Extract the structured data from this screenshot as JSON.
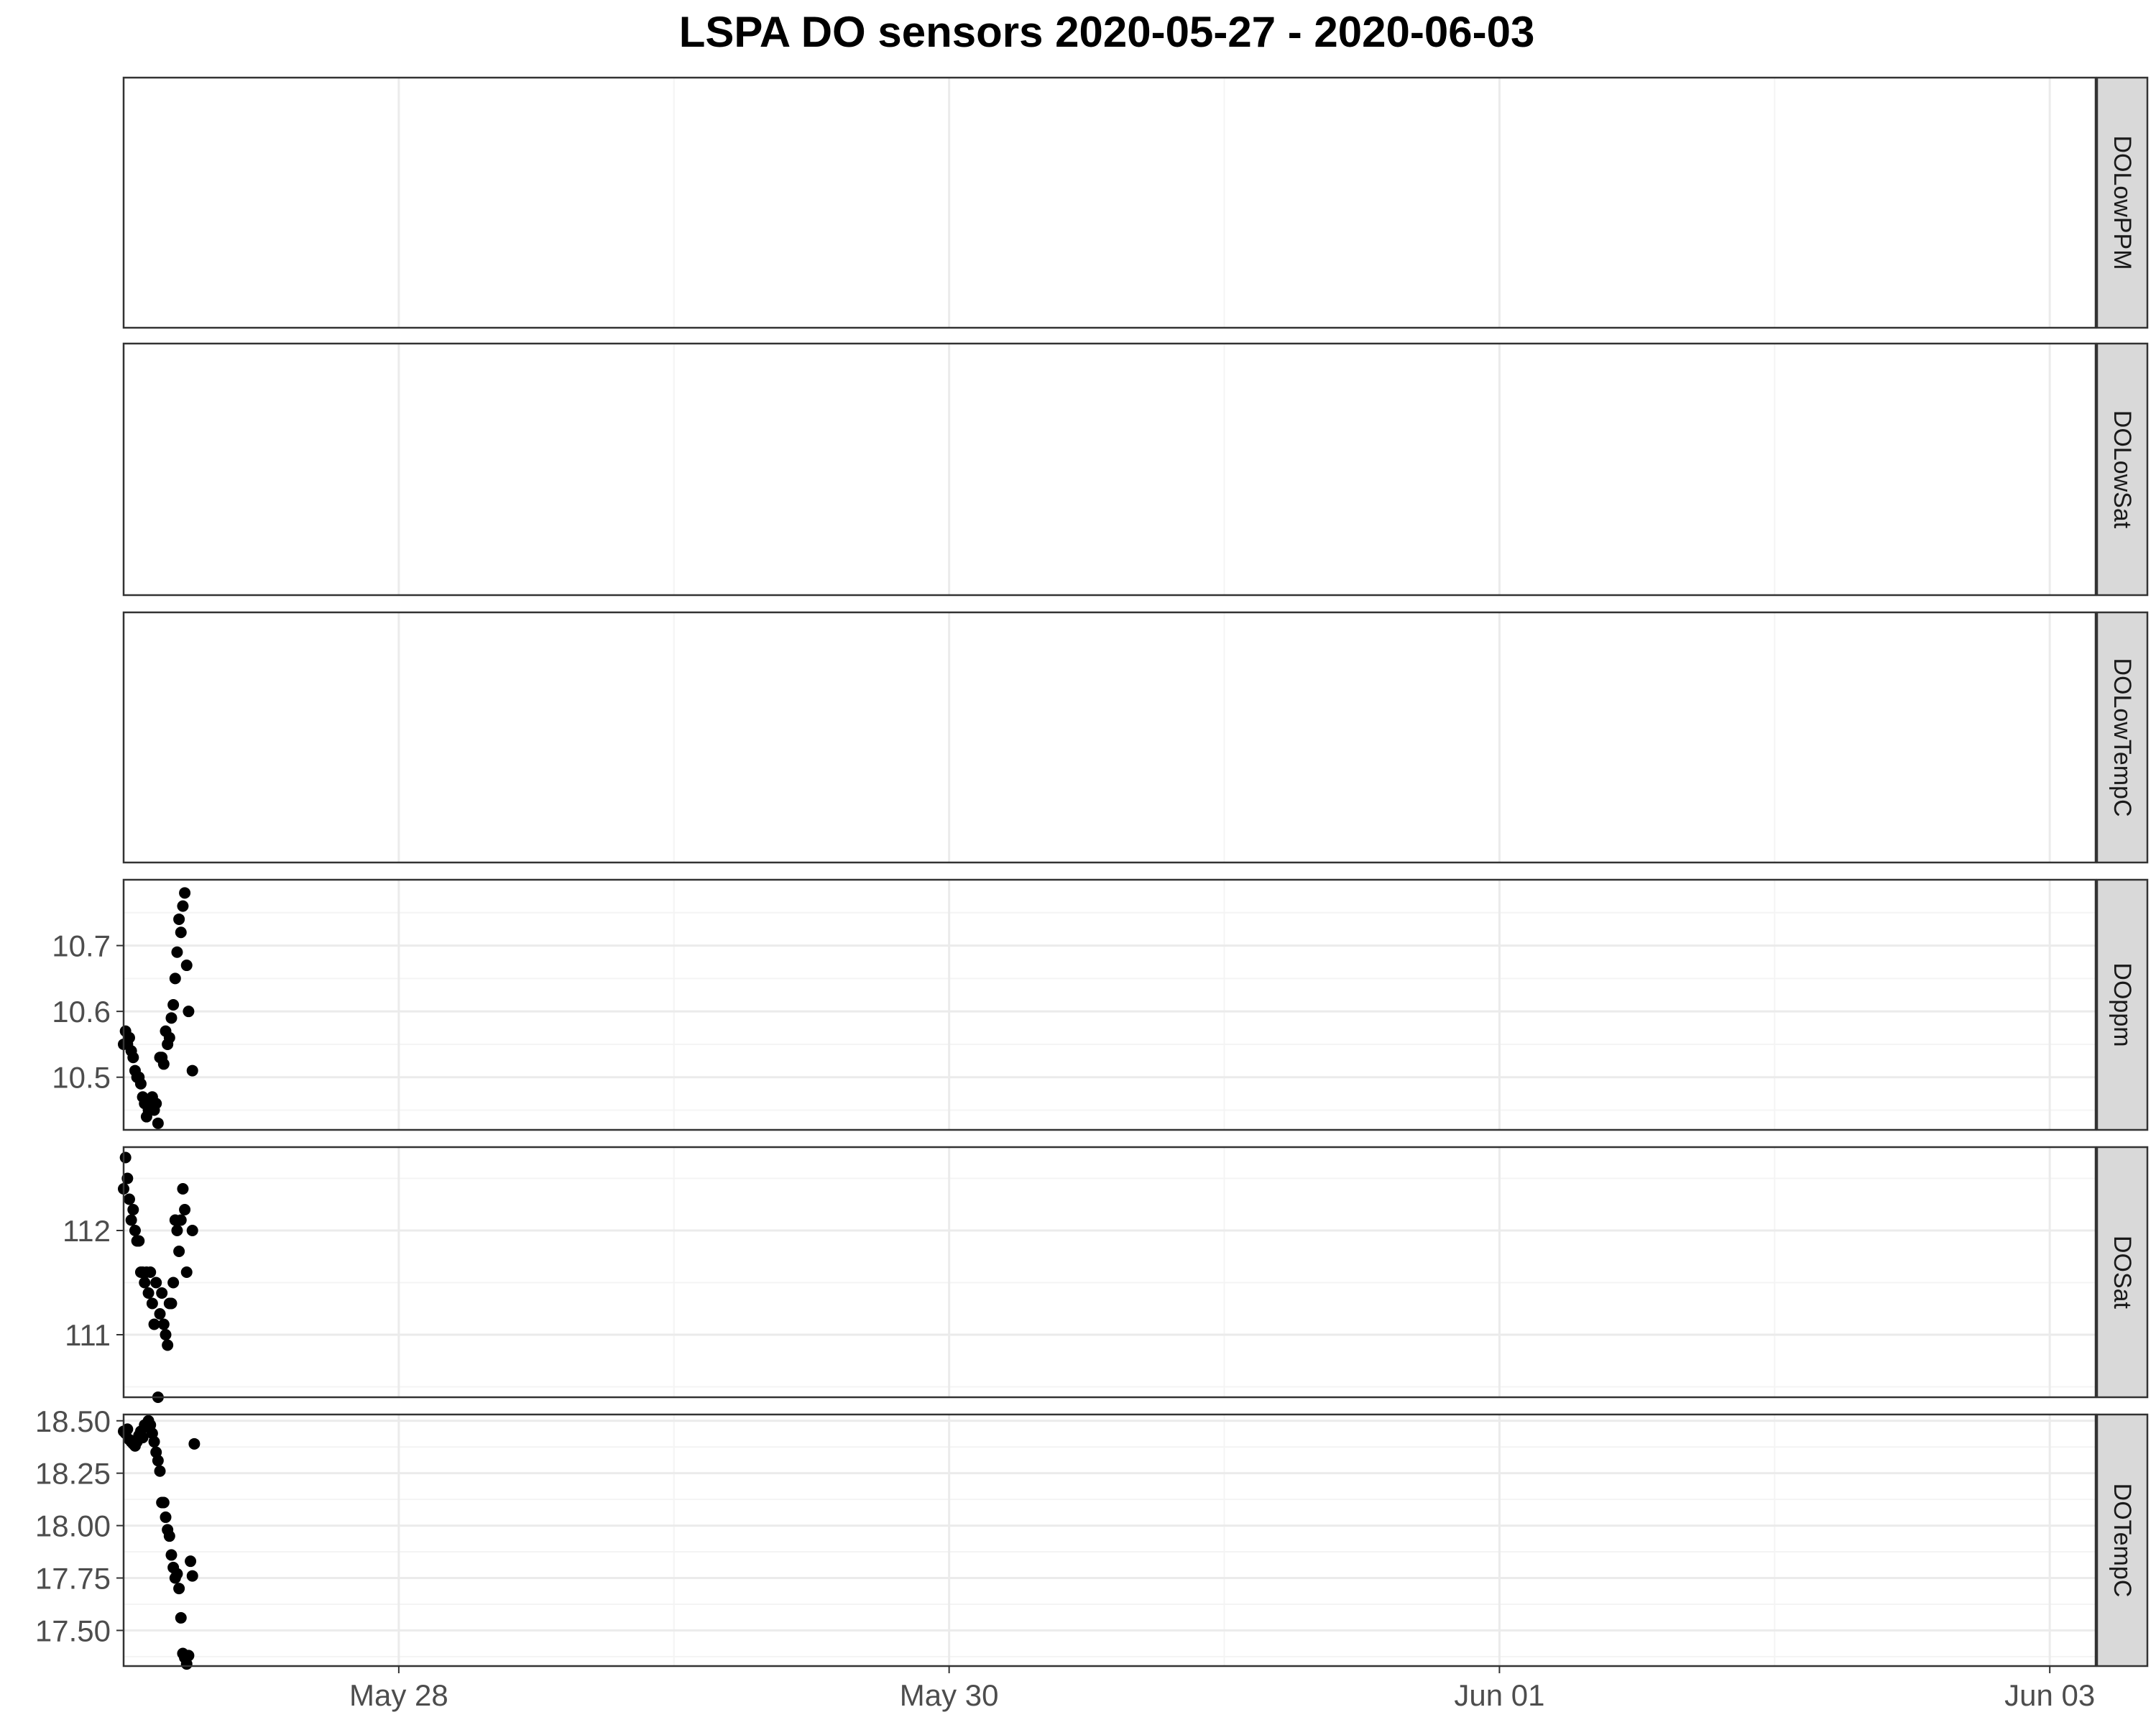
{
  "title": "LSPA DO sensors 2020-05-27 - 2020-06-03",
  "colors": {
    "point": "#000000",
    "panel_border": "#333333",
    "grid_major": "#ebebeb",
    "grid_minor": "#f4f4f4",
    "strip_fill": "#d9d9d9",
    "background": "#ffffff"
  },
  "chart_data": {
    "type": "scatter",
    "title": "LSPA DO sensors 2020-05-27 - 2020-06-03",
    "facet_layout": "stacked rows, shared date x-axis, strip labels on right",
    "grid": true,
    "x_range": [
      "2020-05-27T00:00",
      "2020-06-03T04:00"
    ],
    "x_ticks": [
      {
        "value": "2020-05-28",
        "label": "May 28"
      },
      {
        "value": "2020-05-30",
        "label": "May 30"
      },
      {
        "value": "2020-06-01",
        "label": "Jun 01"
      },
      {
        "value": "2020-06-03",
        "label": "Jun 03"
      }
    ],
    "x_minor_ticks": [
      "2020-05-27",
      "2020-05-29",
      "2020-05-31",
      "2020-06-02"
    ],
    "panels": [
      {
        "name": "DOLowPPM",
        "points": []
      },
      {
        "name": "DOLowSat",
        "points": []
      },
      {
        "name": "DOLowTempC",
        "points": []
      },
      {
        "name": "DOppm",
        "ylim": [
          10.42,
          10.8
        ],
        "y_ticks": [
          10.5,
          10.6,
          10.7
        ],
        "y_tick_labels": [
          "10.5",
          "10.6",
          "10.7"
        ],
        "points": [
          [
            "2020-05-27T00:00",
            10.55
          ],
          [
            "2020-05-27T00:10",
            10.57
          ],
          [
            "2020-05-27T00:20",
            10.55
          ],
          [
            "2020-05-27T00:30",
            10.56
          ],
          [
            "2020-05-27T00:40",
            10.54
          ],
          [
            "2020-05-27T00:50",
            10.53
          ],
          [
            "2020-05-27T01:00",
            10.51
          ],
          [
            "2020-05-27T01:10",
            10.5
          ],
          [
            "2020-05-27T01:20",
            10.5
          ],
          [
            "2020-05-27T01:30",
            10.49
          ],
          [
            "2020-05-27T01:40",
            10.47
          ],
          [
            "2020-05-27T01:50",
            10.46
          ],
          [
            "2020-05-27T02:00",
            10.44
          ],
          [
            "2020-05-27T02:10",
            10.45
          ],
          [
            "2020-05-27T02:20",
            10.46
          ],
          [
            "2020-05-27T02:30",
            10.47
          ],
          [
            "2020-05-27T02:40",
            10.45
          ],
          [
            "2020-05-27T02:50",
            10.46
          ],
          [
            "2020-05-27T03:00",
            10.43
          ],
          [
            "2020-05-27T03:10",
            10.53
          ],
          [
            "2020-05-27T03:20",
            10.53
          ],
          [
            "2020-05-27T03:30",
            10.52
          ],
          [
            "2020-05-27T03:40",
            10.57
          ],
          [
            "2020-05-27T03:50",
            10.55
          ],
          [
            "2020-05-27T04:00",
            10.56
          ],
          [
            "2020-05-27T04:10",
            10.59
          ],
          [
            "2020-05-27T04:20",
            10.61
          ],
          [
            "2020-05-27T04:30",
            10.65
          ],
          [
            "2020-05-27T04:40",
            10.69
          ],
          [
            "2020-05-27T04:50",
            10.74
          ],
          [
            "2020-05-27T05:00",
            10.72
          ],
          [
            "2020-05-27T05:10",
            10.76
          ],
          [
            "2020-05-27T05:20",
            10.78
          ],
          [
            "2020-05-27T05:30",
            10.67
          ],
          [
            "2020-05-27T05:40",
            10.6
          ],
          [
            "2020-05-27T06:00",
            10.51
          ]
        ]
      },
      {
        "name": "DOSat",
        "ylim": [
          110.4,
          112.8
        ],
        "y_ticks": [
          111,
          112
        ],
        "y_tick_labels": [
          "111",
          "112"
        ],
        "points": [
          [
            "2020-05-27T00:00",
            112.4
          ],
          [
            "2020-05-27T00:10",
            112.7
          ],
          [
            "2020-05-27T00:20",
            112.5
          ],
          [
            "2020-05-27T00:30",
            112.3
          ],
          [
            "2020-05-27T00:40",
            112.1
          ],
          [
            "2020-05-27T00:50",
            112.2
          ],
          [
            "2020-05-27T01:00",
            112.0
          ],
          [
            "2020-05-27T01:10",
            111.9
          ],
          [
            "2020-05-27T01:20",
            111.9
          ],
          [
            "2020-05-27T01:30",
            111.6
          ],
          [
            "2020-05-27T01:40",
            111.6
          ],
          [
            "2020-05-27T01:50",
            111.5
          ],
          [
            "2020-05-27T02:00",
            111.6
          ],
          [
            "2020-05-27T02:10",
            111.4
          ],
          [
            "2020-05-27T02:20",
            111.6
          ],
          [
            "2020-05-27T02:30",
            111.3
          ],
          [
            "2020-05-27T02:40",
            111.1
          ],
          [
            "2020-05-27T02:50",
            111.5
          ],
          [
            "2020-05-27T03:00",
            110.4
          ],
          [
            "2020-05-27T03:10",
            111.2
          ],
          [
            "2020-05-27T03:20",
            111.4
          ],
          [
            "2020-05-27T03:30",
            111.1
          ],
          [
            "2020-05-27T03:40",
            111.0
          ],
          [
            "2020-05-27T03:50",
            110.9
          ],
          [
            "2020-05-27T04:00",
            111.3
          ],
          [
            "2020-05-27T04:10",
            111.3
          ],
          [
            "2020-05-27T04:20",
            111.5
          ],
          [
            "2020-05-27T04:30",
            112.1
          ],
          [
            "2020-05-27T04:40",
            112.0
          ],
          [
            "2020-05-27T04:50",
            111.8
          ],
          [
            "2020-05-27T05:00",
            112.1
          ],
          [
            "2020-05-27T05:10",
            112.4
          ],
          [
            "2020-05-27T05:20",
            112.2
          ],
          [
            "2020-05-27T05:30",
            111.6
          ],
          [
            "2020-05-27T06:00",
            112.0
          ]
        ]
      },
      {
        "name": "DOTempC",
        "ylim": [
          17.33,
          18.53
        ],
        "y_ticks": [
          17.5,
          17.75,
          18.0,
          18.25,
          18.5
        ],
        "y_tick_labels": [
          "17.50",
          "17.75",
          "18.00",
          "18.25",
          "18.50"
        ],
        "points": [
          [
            "2020-05-27T00:00",
            18.45
          ],
          [
            "2020-05-27T00:10",
            18.44
          ],
          [
            "2020-05-27T00:20",
            18.46
          ],
          [
            "2020-05-27T00:30",
            18.41
          ],
          [
            "2020-05-27T00:40",
            18.4
          ],
          [
            "2020-05-27T00:50",
            18.39
          ],
          [
            "2020-05-27T01:00",
            18.38
          ],
          [
            "2020-05-27T01:10",
            18.4
          ],
          [
            "2020-05-27T01:20",
            18.43
          ],
          [
            "2020-05-27T01:30",
            18.45
          ],
          [
            "2020-05-27T01:40",
            18.42
          ],
          [
            "2020-05-27T01:50",
            18.48
          ],
          [
            "2020-05-27T02:00",
            18.47
          ],
          [
            "2020-05-27T02:10",
            18.5
          ],
          [
            "2020-05-27T02:20",
            18.48
          ],
          [
            "2020-05-27T02:30",
            18.44
          ],
          [
            "2020-05-27T02:40",
            18.4
          ],
          [
            "2020-05-27T02:50",
            18.35
          ],
          [
            "2020-05-27T03:00",
            18.31
          ],
          [
            "2020-05-27T03:10",
            18.26
          ],
          [
            "2020-05-27T03:20",
            18.11
          ],
          [
            "2020-05-27T03:30",
            18.11
          ],
          [
            "2020-05-27T03:40",
            18.04
          ],
          [
            "2020-05-27T03:50",
            17.98
          ],
          [
            "2020-05-27T04:00",
            17.95
          ],
          [
            "2020-05-27T04:10",
            17.86
          ],
          [
            "2020-05-27T04:20",
            17.8
          ],
          [
            "2020-05-27T04:30",
            17.75
          ],
          [
            "2020-05-27T04:40",
            17.77
          ],
          [
            "2020-05-27T04:50",
            17.7
          ],
          [
            "2020-05-27T05:00",
            17.56
          ],
          [
            "2020-05-27T05:10",
            17.39
          ],
          [
            "2020-05-27T05:20",
            17.37
          ],
          [
            "2020-05-27T05:30",
            17.34
          ],
          [
            "2020-05-27T05:40",
            17.38
          ],
          [
            "2020-05-27T05:50",
            17.83
          ],
          [
            "2020-05-27T06:00",
            17.76
          ],
          [
            "2020-05-27T06:10",
            18.39
          ]
        ]
      }
    ]
  }
}
